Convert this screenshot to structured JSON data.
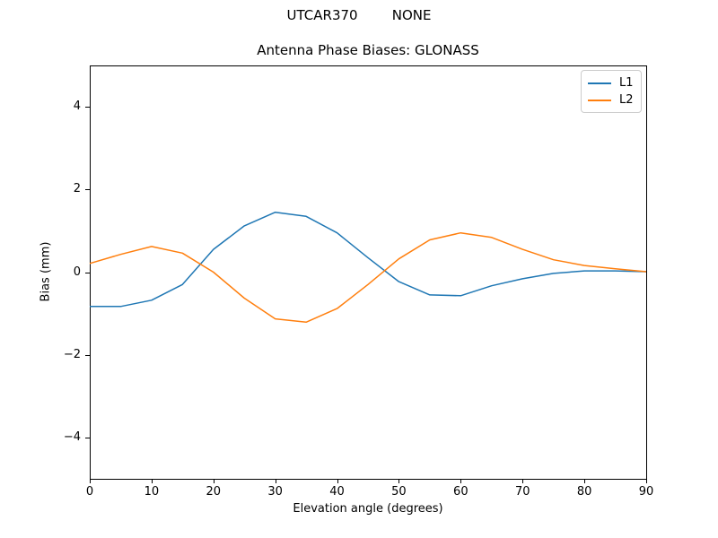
{
  "figure": {
    "suptitle": "UTCAR370        NONE"
  },
  "chart_data": {
    "type": "line",
    "title": "Antenna Phase Biases: GLONASS",
    "xlabel": "Elevation angle (degrees)",
    "ylabel": "Bias (mm)",
    "xlim": [
      0,
      90
    ],
    "ylim": [
      -5,
      5
    ],
    "xticks": [
      0,
      10,
      20,
      30,
      40,
      50,
      60,
      70,
      80,
      90
    ],
    "yticks": [
      -4,
      -2,
      0,
      2,
      4
    ],
    "grid": false,
    "legend_position": "upper right",
    "x": [
      0,
      5,
      10,
      15,
      20,
      25,
      30,
      35,
      40,
      45,
      50,
      55,
      60,
      65,
      70,
      75,
      80,
      85,
      90
    ],
    "series": [
      {
        "name": "L1",
        "color": "#1f77b4",
        "values": [
          -0.83,
          -0.83,
          -0.68,
          -0.3,
          0.55,
          1.12,
          1.45,
          1.35,
          0.95,
          0.35,
          -0.23,
          -0.55,
          -0.57,
          -0.33,
          -0.16,
          -0.03,
          0.03,
          0.03,
          0.01
        ]
      },
      {
        "name": "L2",
        "color": "#ff7f0e",
        "values": [
          0.21,
          0.43,
          0.62,
          0.46,
          0.0,
          -0.63,
          -1.13,
          -1.21,
          -0.88,
          -0.3,
          0.32,
          0.78,
          0.95,
          0.84,
          0.55,
          0.3,
          0.16,
          0.08,
          0.01
        ]
      }
    ]
  }
}
